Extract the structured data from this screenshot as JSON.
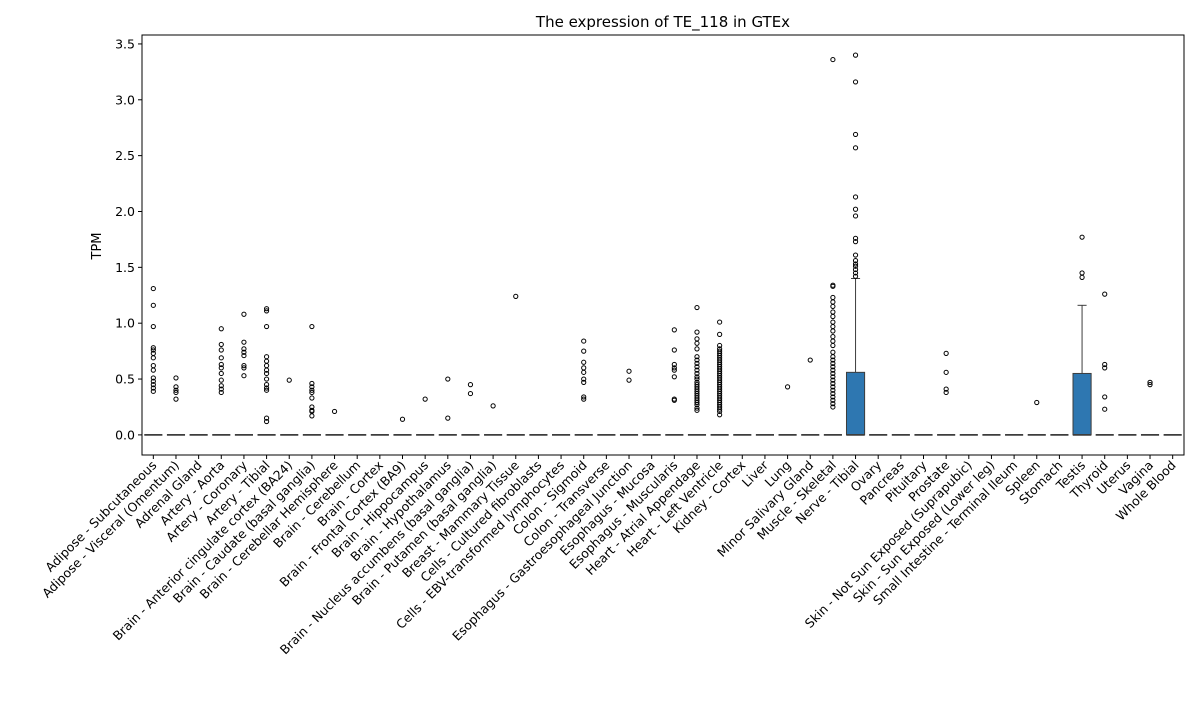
{
  "chart_data": {
    "type": "box",
    "title": "The expression of TE_118 in GTEx",
    "xlabel": "",
    "ylabel": "TPM",
    "ylim": [
      -0.18,
      3.58
    ],
    "yticks": [
      0.0,
      0.5,
      1.0,
      1.5,
      2.0,
      2.5,
      3.0,
      3.5
    ],
    "ytick_labels": [
      "0.0",
      "0.5",
      "1.0",
      "1.5",
      "2.0",
      "2.5",
      "3.0",
      "3.5"
    ],
    "grid": false,
    "legend": "none",
    "box_color": "#2e77b1",
    "categories": [
      "Adipose - Subcutaneous",
      "Adipose - Visceral (Omentum)",
      "Adrenal Gland",
      "Artery - Aorta",
      "Artery - Coronary",
      "Artery - Tibial",
      "Brain - Anterior cingulate cortex (BA24)",
      "Brain - Caudate (basal ganglia)",
      "Brain - Cerebellar Hemisphere",
      "Brain - Cerebellum",
      "Brain - Cortex",
      "Brain - Frontal Cortex (BA9)",
      "Brain - Hippocampus",
      "Brain - Hypothalamus",
      "Brain - Nucleus accumbens (basal ganglia)",
      "Brain - Putamen (basal ganglia)",
      "Breast - Mammary Tissue",
      "Cells - Cultured fibroblasts",
      "Cells - EBV-transformed lymphocytes",
      "Colon - Sigmoid",
      "Colon - Transverse",
      "Esophagus - Gastroesophageal Junction",
      "Esophagus - Mucosa",
      "Esophagus - Muscularis",
      "Heart - Atrial Appendage",
      "Heart - Left Ventricle",
      "Kidney - Cortex",
      "Liver",
      "Lung",
      "Minor Salivary Gland",
      "Muscle - Skeletal",
      "Nerve - Tibial",
      "Ovary",
      "Pancreas",
      "Pituitary",
      "Prostate",
      "Skin - Not Sun Exposed (Suprapubic)",
      "Skin - Sun Exposed (Lower leg)",
      "Small Intestine - Terminal Ileum",
      "Spleen",
      "Stomach",
      "Testis",
      "Thyroid",
      "Uterus",
      "Vagina",
      "Whole Blood"
    ],
    "boxes": [
      {
        "q1": 0,
        "median": 0,
        "q3": 0,
        "whisker_low": 0,
        "whisker_high": 0,
        "outliers": [
          1.31,
          1.16,
          0.97,
          0.78,
          0.76,
          0.73,
          0.69,
          0.62,
          0.58,
          0.51,
          0.48,
          0.45,
          0.42,
          0.39
        ]
      },
      {
        "q1": 0,
        "median": 0,
        "q3": 0,
        "whisker_low": 0,
        "whisker_high": 0,
        "outliers": [
          0.51,
          0.43,
          0.4,
          0.38,
          0.32
        ]
      },
      {
        "q1": 0,
        "median": 0,
        "q3": 0,
        "whisker_low": 0,
        "whisker_high": 0,
        "outliers": []
      },
      {
        "q1": 0,
        "median": 0,
        "q3": 0,
        "whisker_low": 0,
        "whisker_high": 0,
        "outliers": [
          0.95,
          0.81,
          0.76,
          0.69,
          0.63,
          0.6,
          0.55,
          0.49,
          0.44,
          0.41,
          0.38
        ]
      },
      {
        "q1": 0,
        "median": 0,
        "q3": 0,
        "whisker_low": 0,
        "whisker_high": 0,
        "outliers": [
          1.08,
          0.83,
          0.77,
          0.74,
          0.71,
          0.62,
          0.6,
          0.53
        ]
      },
      {
        "q1": 0,
        "median": 0,
        "q3": 0,
        "whisker_low": 0,
        "whisker_high": 0,
        "outliers": [
          1.13,
          1.11,
          0.97,
          0.7,
          0.66,
          0.62,
          0.58,
          0.55,
          0.5,
          0.45,
          0.42,
          0.4,
          0.15,
          0.12
        ]
      },
      {
        "q1": 0,
        "median": 0,
        "q3": 0,
        "whisker_low": 0,
        "whisker_high": 0,
        "outliers": [
          0.49
        ]
      },
      {
        "q1": 0,
        "median": 0,
        "q3": 0,
        "whisker_low": 0,
        "whisker_high": 0,
        "outliers": [
          0.97,
          0.46,
          0.43,
          0.4,
          0.38,
          0.33,
          0.25,
          0.22,
          0.21,
          0.17
        ]
      },
      {
        "q1": 0,
        "median": 0,
        "q3": 0,
        "whisker_low": 0,
        "whisker_high": 0,
        "outliers": [
          0.21
        ]
      },
      {
        "q1": 0,
        "median": 0,
        "q3": 0,
        "whisker_low": 0,
        "whisker_high": 0,
        "outliers": []
      },
      {
        "q1": 0,
        "median": 0,
        "q3": 0,
        "whisker_low": 0,
        "whisker_high": 0,
        "outliers": []
      },
      {
        "q1": 0,
        "median": 0,
        "q3": 0,
        "whisker_low": 0,
        "whisker_high": 0,
        "outliers": [
          0.14
        ]
      },
      {
        "q1": 0,
        "median": 0,
        "q3": 0,
        "whisker_low": 0,
        "whisker_high": 0,
        "outliers": [
          0.32
        ]
      },
      {
        "q1": 0,
        "median": 0,
        "q3": 0,
        "whisker_low": 0,
        "whisker_high": 0,
        "outliers": [
          0.5,
          0.15
        ]
      },
      {
        "q1": 0,
        "median": 0,
        "q3": 0,
        "whisker_low": 0,
        "whisker_high": 0,
        "outliers": [
          0.45,
          0.37
        ]
      },
      {
        "q1": 0,
        "median": 0,
        "q3": 0,
        "whisker_low": 0,
        "whisker_high": 0,
        "outliers": [
          0.26
        ]
      },
      {
        "q1": 0,
        "median": 0,
        "q3": 0,
        "whisker_low": 0,
        "whisker_high": 0,
        "outliers": [
          1.24
        ]
      },
      {
        "q1": 0,
        "median": 0,
        "q3": 0,
        "whisker_low": 0,
        "whisker_high": 0,
        "outliers": []
      },
      {
        "q1": 0,
        "median": 0,
        "q3": 0,
        "whisker_low": 0,
        "whisker_high": 0,
        "outliers": []
      },
      {
        "q1": 0,
        "median": 0,
        "q3": 0,
        "whisker_low": 0,
        "whisker_high": 0,
        "outliers": [
          0.84,
          0.75,
          0.65,
          0.6,
          0.56,
          0.5,
          0.47,
          0.34,
          0.32
        ]
      },
      {
        "q1": 0,
        "median": 0,
        "q3": 0,
        "whisker_low": 0,
        "whisker_high": 0,
        "outliers": []
      },
      {
        "q1": 0,
        "median": 0,
        "q3": 0,
        "whisker_low": 0,
        "whisker_high": 0,
        "outliers": [
          0.57,
          0.49
        ]
      },
      {
        "q1": 0,
        "median": 0,
        "q3": 0,
        "whisker_low": 0,
        "whisker_high": 0,
        "outliers": []
      },
      {
        "q1": 0,
        "median": 0,
        "q3": 0,
        "whisker_low": 0,
        "whisker_high": 0,
        "outliers": [
          0.94,
          0.76,
          0.63,
          0.6,
          0.58,
          0.52,
          0.32,
          0.31
        ]
      },
      {
        "q1": 0,
        "median": 0,
        "q3": 0,
        "whisker_low": 0,
        "whisker_high": 0,
        "outliers": [
          1.14,
          0.92,
          0.86,
          0.82,
          0.77,
          0.7,
          0.67,
          0.64,
          0.61,
          0.58,
          0.55,
          0.52,
          0.5,
          0.47,
          0.45,
          0.43,
          0.41,
          0.39,
          0.37,
          0.35,
          0.33,
          0.31,
          0.29,
          0.27,
          0.24,
          0.22
        ]
      },
      {
        "q1": 0,
        "median": 0,
        "q3": 0,
        "whisker_low": 0,
        "whisker_high": 0,
        "outliers": [
          1.01,
          0.9,
          0.8,
          0.77,
          0.75,
          0.73,
          0.71,
          0.69,
          0.67,
          0.65,
          0.63,
          0.61,
          0.59,
          0.57,
          0.55,
          0.53,
          0.51,
          0.49,
          0.47,
          0.45,
          0.43,
          0.41,
          0.39,
          0.37,
          0.35,
          0.33,
          0.31,
          0.29,
          0.27,
          0.25,
          0.23,
          0.21,
          0.18
        ]
      },
      {
        "q1": 0,
        "median": 0,
        "q3": 0,
        "whisker_low": 0,
        "whisker_high": 0,
        "outliers": []
      },
      {
        "q1": 0,
        "median": 0,
        "q3": 0,
        "whisker_low": 0,
        "whisker_high": 0,
        "outliers": []
      },
      {
        "q1": 0,
        "median": 0,
        "q3": 0,
        "whisker_low": 0,
        "whisker_high": 0,
        "outliers": [
          0.43
        ]
      },
      {
        "q1": 0,
        "median": 0,
        "q3": 0,
        "whisker_low": 0,
        "whisker_high": 0,
        "outliers": [
          0.67
        ]
      },
      {
        "q1": 0,
        "median": 0,
        "q3": 0,
        "whisker_low": 0,
        "whisker_high": 0,
        "outliers": [
          3.36,
          1.34,
          1.33,
          1.23,
          1.19,
          1.15,
          1.1,
          1.06,
          1.01,
          0.97,
          0.93,
          0.88,
          0.84,
          0.8,
          0.74,
          0.7,
          0.67,
          0.64,
          0.61,
          0.58,
          0.55,
          0.52,
          0.49,
          0.46,
          0.43,
          0.4,
          0.37,
          0.34,
          0.31,
          0.28,
          0.25
        ]
      },
      {
        "q1": 0,
        "median": 0,
        "q3": 0.56,
        "whisker_low": 0,
        "whisker_high": 1.4,
        "outliers": [
          3.4,
          3.16,
          2.69,
          2.57,
          2.13,
          2.02,
          1.96,
          1.76,
          1.73,
          1.61,
          1.56,
          1.53,
          1.51,
          1.48,
          1.45,
          1.42
        ]
      },
      {
        "q1": 0,
        "median": 0,
        "q3": 0,
        "whisker_low": 0,
        "whisker_high": 0,
        "outliers": []
      },
      {
        "q1": 0,
        "median": 0,
        "q3": 0,
        "whisker_low": 0,
        "whisker_high": 0,
        "outliers": []
      },
      {
        "q1": 0,
        "median": 0,
        "q3": 0,
        "whisker_low": 0,
        "whisker_high": 0,
        "outliers": []
      },
      {
        "q1": 0,
        "median": 0,
        "q3": 0,
        "whisker_low": 0,
        "whisker_high": 0,
        "outliers": [
          0.73,
          0.56,
          0.41,
          0.38
        ]
      },
      {
        "q1": 0,
        "median": 0,
        "q3": 0,
        "whisker_low": 0,
        "whisker_high": 0,
        "outliers": []
      },
      {
        "q1": 0,
        "median": 0,
        "q3": 0,
        "whisker_low": 0,
        "whisker_high": 0,
        "outliers": []
      },
      {
        "q1": 0,
        "median": 0,
        "q3": 0,
        "whisker_low": 0,
        "whisker_high": 0,
        "outliers": []
      },
      {
        "q1": 0,
        "median": 0,
        "q3": 0,
        "whisker_low": 0,
        "whisker_high": 0,
        "outliers": [
          0.29
        ]
      },
      {
        "q1": 0,
        "median": 0,
        "q3": 0,
        "whisker_low": 0,
        "whisker_high": 0,
        "outliers": []
      },
      {
        "q1": 0,
        "median": 0,
        "q3": 0.55,
        "whisker_low": 0,
        "whisker_high": 1.16,
        "outliers": [
          1.77,
          1.45,
          1.41
        ]
      },
      {
        "q1": 0,
        "median": 0,
        "q3": 0,
        "whisker_low": 0,
        "whisker_high": 0,
        "outliers": [
          1.26,
          0.63,
          0.6,
          0.34,
          0.23
        ]
      },
      {
        "q1": 0,
        "median": 0,
        "q3": 0,
        "whisker_low": 0,
        "whisker_high": 0,
        "outliers": []
      },
      {
        "q1": 0,
        "median": 0,
        "q3": 0,
        "whisker_low": 0,
        "whisker_high": 0,
        "outliers": [
          0.47,
          0.45
        ]
      },
      {
        "q1": 0,
        "median": 0,
        "q3": 0,
        "whisker_low": 0,
        "whisker_high": 0,
        "outliers": []
      }
    ]
  }
}
